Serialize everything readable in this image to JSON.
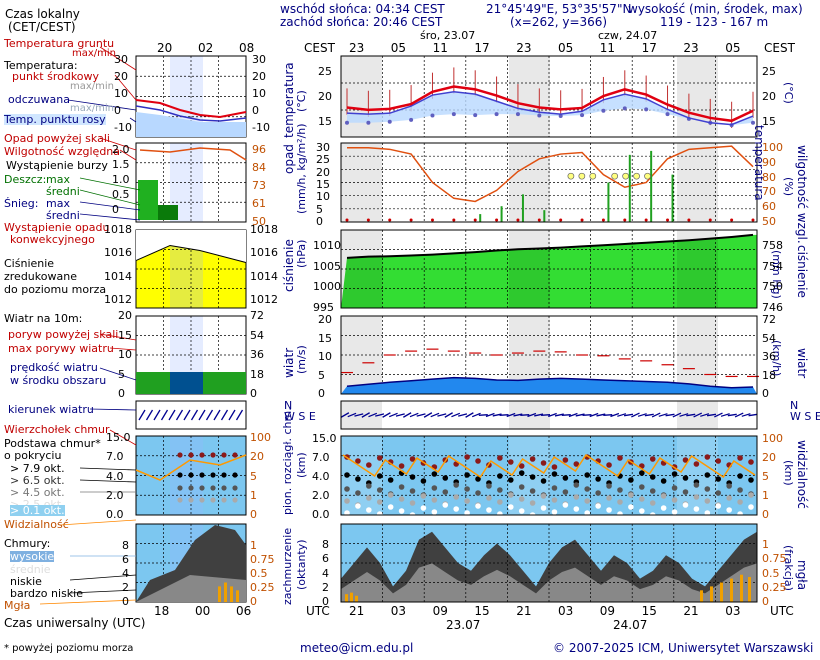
{
  "header": {
    "sunrise": "wschód słońca: 04:34 CEST",
    "sunset": "zachód słońca: 20:46 CEST",
    "coords": "21°45'49\"E, 53°35'57\"N",
    "grid": "(x=262, y=366)",
    "elev_title": "wysokość (min, środek, max)",
    "elev_values": "119 - 123 - 167 m"
  },
  "time_axis": {
    "cest_label": "CEST",
    "cest_ticks": [
      "23",
      "05",
      "11",
      "17",
      "23",
      "05",
      "11",
      "17",
      "23",
      "05"
    ],
    "day1_label": "śro, 23.07",
    "day2_label": "czw, 24.07",
    "utc_label": "UTC",
    "utc_ticks": [
      "21",
      "03",
      "09",
      "15",
      "21",
      "03",
      "09",
      "15",
      "21",
      "03"
    ],
    "utc_day1": "23.07",
    "utc_day2": "24.07"
  },
  "legend": {
    "local_time": "Czas lokalny",
    "local_time_sub": "(CET/CEST)",
    "legend_local_ticks": [
      "20",
      "02",
      "08"
    ],
    "legend_utc_ticks": [
      "18",
      "00",
      "06"
    ],
    "soil_temp": "Temperatura gruntu",
    "soil_temp_sub": "max/min",
    "temperature": "Temperatura:",
    "mid_point": "punkt środkowy",
    "max_label": "max/min",
    "perceived": "odczuwana",
    "perceived_sub": "max/min",
    "dew_point": "Temp. punktu rosy",
    "precip_above": "Opad powyżej skali",
    "humidity": "Wilgotność względna",
    "storm": "Wystąpienie burzy",
    "rain": "Deszcz:",
    "rain_max": "max",
    "rain_mean": "średni",
    "snow": "Śnieg:",
    "snow_max": "max",
    "snow_mean": "średni",
    "conv1": "Wystąpienie opadu",
    "conv2": "konwekcyjnego",
    "pressure1": "Ciśnienie",
    "pressure2": "zredukowane",
    "pressure3": "do poziomu morza",
    "wind": "Wiatr na 10m:",
    "gust_above": "poryw powyżej skali",
    "max_gust": "max porywy wiatru",
    "wind_speed": "prędkość wiatru",
    "wind_speed_sub": "w środku obszaru",
    "wind_dir": "kierunek wiatru",
    "chill": "Wierzchołek chmur",
    "cloud_base": "Podstawa chmur*",
    "cloud_cover": "o pokryciu",
    "c79": "> 7.9 okt.",
    "c65": "> 6.5 okt.",
    "c45": "> 4.5 okt.",
    "c25": "> 2.5 okt.",
    "c01": "> 0.1 okt.",
    "visibility": "Widzialność",
    "clouds": "Chmury:",
    "high": "wysokie",
    "middle": "średnie",
    "low": "niskie",
    "very_low": "bardzo niskie",
    "fog": "Mgła",
    "utc_time": "Czas uniwersalny (UTC)",
    "footnote": "* powyżej poziomu morza"
  },
  "axes": {
    "temp_title": "temperatura",
    "temp_unit": "(°C)",
    "precip_title": "opad",
    "precip_unit": "(mm/h, kg/m²/h)",
    "hum_title": "wilgotność wzgl.",
    "hum_unit": "(%)",
    "press_title": "ciśnienie",
    "press_unit": "(hPa)",
    "press_unit2": "(mm Hg)",
    "wind_title": "wiatr",
    "wind_unit": "(m/s)",
    "wind_unit2": "(km/h)",
    "cloud_title": "pion. rozciągł. chm.",
    "cloud_unit": "(km)",
    "vis_title": "widzialność",
    "vis_unit": "(km)",
    "cover_title": "zachmurzenie",
    "cover_unit": "(oktanty)",
    "fog_title": "mgła",
    "fog_unit": "(frakcja)",
    "temp_ticks": [
      "25",
      "20",
      "15"
    ],
    "precip_ticks": [
      "30",
      "25",
      "20",
      "15",
      "10",
      "5",
      "0"
    ],
    "hum_ticks": [
      "100",
      "90",
      "80",
      "70",
      "60",
      "50"
    ],
    "press_ticks": [
      "1010",
      "1005",
      "1000",
      "995"
    ],
    "press_ticks2": [
      "758",
      "754",
      "750",
      "746"
    ],
    "wind_ticks": [
      "20",
      "15",
      "10",
      "5",
      "0"
    ],
    "wind_ticks2": [
      "72",
      "54",
      "36",
      "18",
      "0"
    ],
    "cloud_ticks": [
      "15.0",
      "7.0",
      "4.0",
      "2.0",
      "0.0"
    ],
    "vis_ticks": [
      "100",
      "20",
      "5",
      "1",
      "0"
    ],
    "cover_ticks": [
      "8",
      "6",
      "4",
      "2",
      "0"
    ],
    "fog_ticks": [
      "1",
      "0.75",
      "0.5",
      "0.25",
      "0"
    ],
    "leg_temp_ticks": [
      "30",
      "20",
      "10",
      "0",
      "-10"
    ],
    "leg_precip_ticks": [
      "2.0",
      "1.5",
      "1.0",
      "0.5",
      "0"
    ],
    "leg_hum_ticks": [
      "96",
      "84",
      "73",
      "61",
      "50"
    ],
    "leg_press_ticks": [
      "1018",
      "1016",
      "1014",
      "1012"
    ],
    "leg_wind_ticks": [
      "20",
      "15",
      "10",
      "5",
      "0"
    ],
    "leg_wind_ticks2": [
      "72",
      "54",
      "36",
      "18",
      "0"
    ],
    "leg_cloud_ticks": [
      "15.0",
      "7.0",
      "4.0",
      "2.0",
      "0.0"
    ],
    "leg_vis_ticks": [
      "100",
      "20",
      "5",
      "1",
      "0"
    ],
    "leg_cover_ticks": [
      "8",
      "6",
      "4",
      "2",
      "0"
    ],
    "leg_fog_ticks": [
      "1",
      "0.75",
      "0.5",
      "0.25",
      "0"
    ]
  },
  "footer": {
    "email": "meteo@icm.edu.pl",
    "copyright": "© 2007-2025 ICM, Uniwersytet Warszawski"
  },
  "colors": {
    "red": "#cc0000",
    "navy": "#000080",
    "green": "#00cc00",
    "sky": "#66bbff",
    "yellow": "#ffff00",
    "orange": "#ff9900"
  },
  "chart_data": [
    {
      "type": "line",
      "title": "temperatura",
      "ylabel": "(°C)",
      "ylim": [
        12,
        29
      ],
      "x": [
        "21",
        "00",
        "03",
        "06",
        "09",
        "12",
        "15",
        "18",
        "21",
        "00",
        "03",
        "06",
        "09",
        "12",
        "15",
        "18",
        "21",
        "00",
        "03",
        "06"
      ],
      "series": [
        {
          "name": "punkt środkowy",
          "values": [
            18.2,
            17.7,
            17.9,
            18.9,
            21.5,
            22.6,
            22.0,
            20.7,
            19.1,
            18.2,
            17.8,
            18.1,
            20.6,
            22.0,
            20.9,
            18.8,
            17.1,
            16.0,
            15.4,
            17.5
          ]
        },
        {
          "name": "odczuwana",
          "values": [
            17.0,
            16.8,
            17.0,
            18.5,
            20.8,
            21.5,
            21.0,
            19.5,
            18.0,
            17.2,
            16.8,
            17.4,
            19.8,
            21.0,
            20.0,
            17.8,
            16.0,
            15.0,
            14.6,
            16.4
          ]
        },
        {
          "name": "Temp. punktu rosy",
          "values": [
            15.0,
            15.0,
            15.2,
            15.6,
            16.5,
            16.8,
            16.6,
            16.8,
            16.8,
            16.5,
            16.4,
            16.6,
            17.5,
            18.0,
            17.8,
            16.8,
            15.8,
            15.0,
            14.5,
            15.0
          ]
        }
      ]
    },
    {
      "type": "line",
      "title": "wilgotność wzgl.",
      "ylabel": "(%)",
      "ylim": [
        50,
        100
      ],
      "x": [
        "21",
        "00",
        "03",
        "06",
        "09",
        "12",
        "15",
        "18",
        "21",
        "00",
        "03",
        "06",
        "09",
        "12",
        "15",
        "18",
        "21",
        "00",
        "03",
        "06"
      ],
      "series": [
        {
          "name": "Wilgotność względna",
          "values": [
            97,
            97,
            96,
            93,
            75,
            65,
            63,
            70,
            82,
            90,
            93,
            94,
            80,
            72,
            75,
            90,
            96,
            97,
            98,
            85
          ]
        }
      ]
    },
    {
      "type": "area",
      "title": "ciśnienie",
      "ylabel": "(hPa)",
      "ylim": [
        995,
        1014
      ],
      "x": [
        "21",
        "00",
        "03",
        "06",
        "09",
        "12",
        "15",
        "18",
        "21",
        "00",
        "03",
        "06",
        "09",
        "12",
        "15",
        "18",
        "21",
        "00",
        "03",
        "06"
      ],
      "series": [
        {
          "name": "Ciśnienie",
          "values": [
            1007.2,
            1007.5,
            1007.6,
            1007.8,
            1008.0,
            1008.3,
            1008.6,
            1009.0,
            1009.3,
            1009.5,
            1009.7,
            1010.0,
            1010.3,
            1010.6,
            1010.9,
            1011.2,
            1011.5,
            1011.9,
            1012.3,
            1012.8
          ]
        }
      ]
    },
    {
      "type": "line",
      "title": "wiatr",
      "ylabel": "(m/s)",
      "ylim": [
        0,
        20
      ],
      "x": [
        "21",
        "00",
        "03",
        "06",
        "09",
        "12",
        "15",
        "18",
        "21",
        "00",
        "03",
        "06",
        "09",
        "12",
        "15",
        "18",
        "21",
        "00",
        "03",
        "06"
      ],
      "series": [
        {
          "name": "prędkość wiatru",
          "values": [
            2.0,
            2.5,
            3.0,
            3.4,
            3.8,
            4.2,
            4.0,
            3.6,
            3.5,
            3.8,
            4.0,
            3.8,
            3.6,
            3.4,
            3.2,
            3.0,
            2.6,
            2.0,
            1.6,
            1.8
          ]
        },
        {
          "name": "max porywy wiatru",
          "values": [
            5.5,
            8.0,
            10.0,
            11.0,
            11.5,
            11.0,
            10.5,
            10.0,
            10.5,
            11.0,
            10.8,
            10.0,
            9.8,
            9.0,
            8.5,
            7.5,
            6.5,
            5.0,
            4.5,
            4.5
          ]
        }
      ]
    }
  ]
}
